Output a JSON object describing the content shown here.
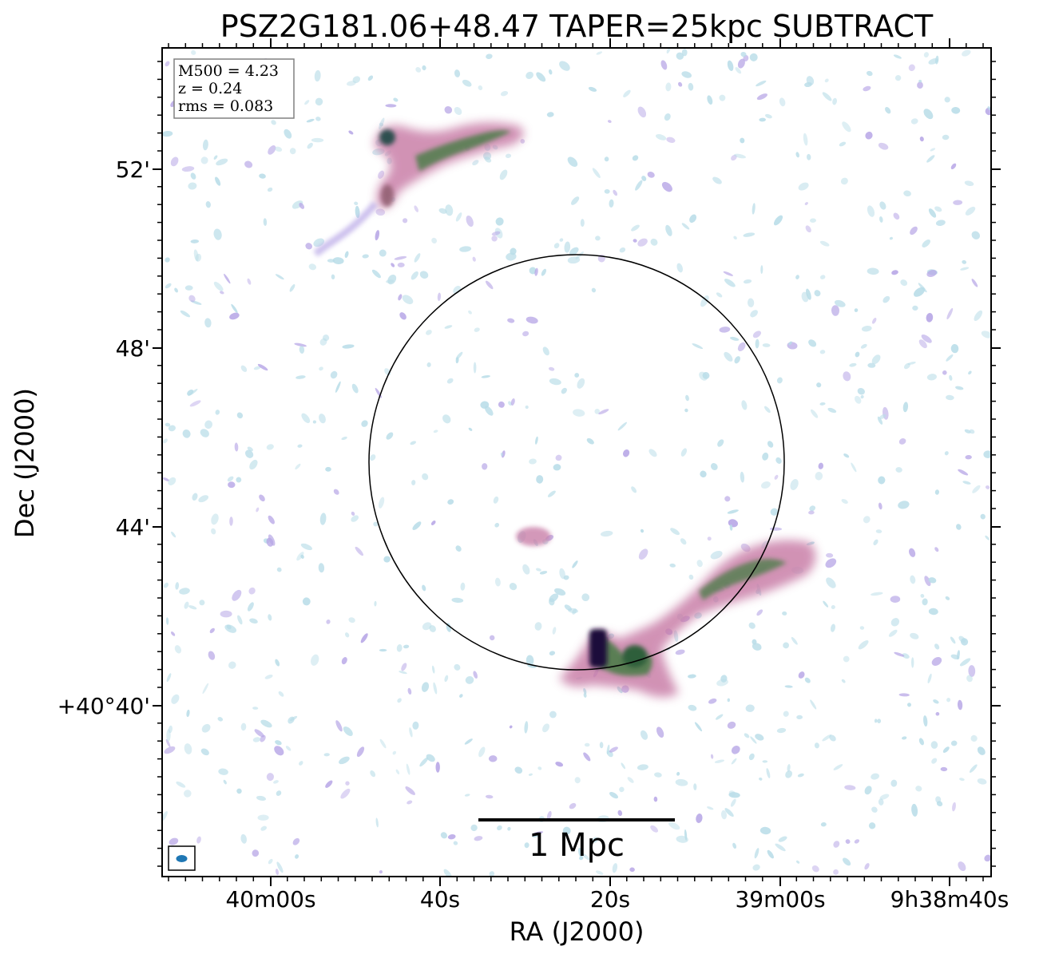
{
  "title": "PSZ2G181.06+48.47 TAPER=25kpc SUBTRACT",
  "axes": {
    "xlabel": "RA (J2000)",
    "ylabel": "Dec (J2000)",
    "xticks": [
      "40m00s",
      "40s",
      "20s",
      "39m00s",
      "9h38m40s"
    ],
    "yticks": [
      "52'",
      "48'",
      "44'",
      "+40°40'"
    ]
  },
  "info_box": {
    "mass": "M500 = 4.23",
    "redshift": "z = 0.24",
    "rms": "rms = 0.083"
  },
  "scale_bar": {
    "label": "1 Mpc"
  },
  "colors": {
    "noise_light": "#b9dde8",
    "noise_purple": "#b7a6e6",
    "emission_pink": "#c97fa8",
    "emission_green": "#3c7a3c",
    "peak_dark": "#1a0f3a",
    "beam": "#1f77b4"
  },
  "icons": {
    "beam": "beam-ellipse-icon",
    "aperture": "r500-circle-icon"
  }
}
